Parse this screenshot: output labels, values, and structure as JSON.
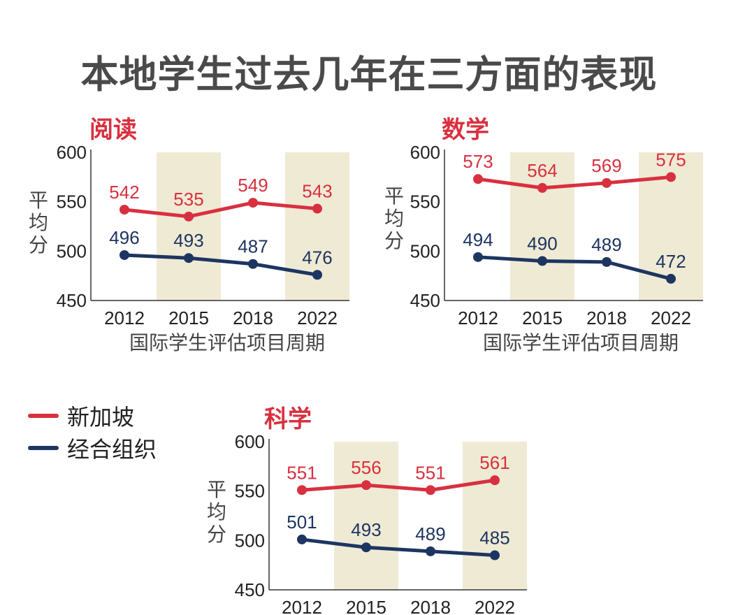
{
  "title": "本地学生过去几年在三方面的表现",
  "legend": [
    {
      "label": "新加坡",
      "color": "#d8303f"
    },
    {
      "label": "经合组织",
      "color": "#1d3561"
    }
  ],
  "colors": {
    "singapore": "#d8303f",
    "oecd": "#1d3561",
    "band": "#efead4",
    "axis": "#333333"
  },
  "chart_data": [
    {
      "type": "line",
      "title": "阅读",
      "categories": [
        "2012",
        "2015",
        "2018",
        "2022"
      ],
      "xlabel": "国际学生评估项目周期",
      "ylabel": "平均分",
      "ylim": [
        450,
        600
      ],
      "yticks": [
        "600",
        "550",
        "500",
        "450"
      ],
      "highlighted_categories": [
        "2015",
        "2022"
      ],
      "series": [
        {
          "name": "新加坡",
          "values": [
            542,
            535,
            549,
            543
          ]
        },
        {
          "name": "经合组织",
          "values": [
            496,
            493,
            487,
            476
          ]
        }
      ]
    },
    {
      "type": "line",
      "title": "数学",
      "categories": [
        "2012",
        "2015",
        "2018",
        "2022"
      ],
      "xlabel": "国际学生评估项目周期",
      "ylabel": "平均分",
      "ylim": [
        450,
        600
      ],
      "yticks": [
        "600",
        "550",
        "500",
        "450"
      ],
      "highlighted_categories": [
        "2015",
        "2022"
      ],
      "series": [
        {
          "name": "新加坡",
          "values": [
            573,
            564,
            569,
            575
          ]
        },
        {
          "name": "经合组织",
          "values": [
            494,
            490,
            489,
            472
          ]
        }
      ]
    },
    {
      "type": "line",
      "title": "科学",
      "categories": [
        "2012",
        "2015",
        "2018",
        "2022"
      ],
      "xlabel": "",
      "ylabel": "平均分",
      "ylim": [
        450,
        600
      ],
      "yticks": [
        "600",
        "550",
        "500",
        "450"
      ],
      "highlighted_categories": [
        "2015",
        "2022"
      ],
      "series": [
        {
          "name": "新加坡",
          "values": [
            551,
            556,
            551,
            561
          ]
        },
        {
          "name": "经合组织",
          "values": [
            501,
            493,
            489,
            485
          ]
        }
      ]
    }
  ]
}
